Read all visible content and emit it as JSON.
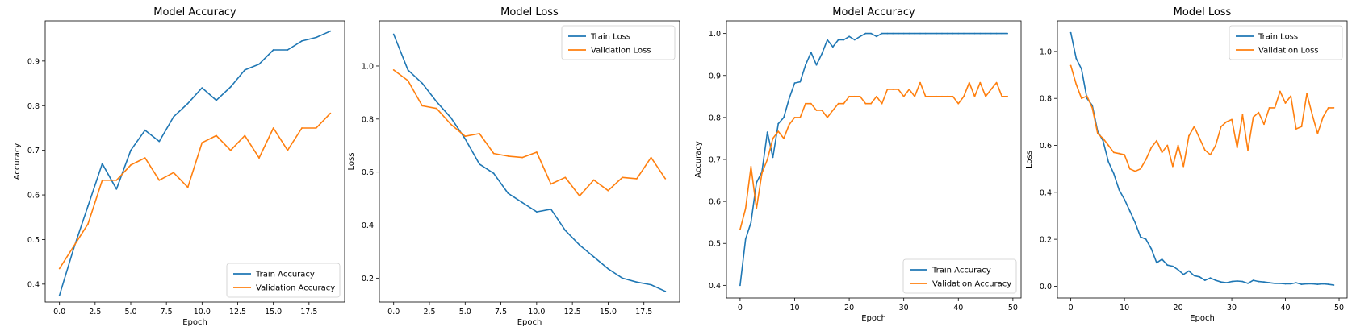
{
  "chart_data": [
    {
      "type": "line",
      "title": "Model Accuracy",
      "xlabel": "Epoch",
      "ylabel": "Accuracy",
      "xlim": [
        -1,
        20
      ],
      "ylim": [
        0.36,
        0.99
      ],
      "xticks": [
        0.0,
        2.5,
        5.0,
        7.5,
        10.0,
        12.5,
        15.0,
        17.5
      ],
      "xtick_labels": [
        "0.0",
        "2.5",
        "5.0",
        "7.5",
        "10.0",
        "12.5",
        "15.0",
        "17.5"
      ],
      "yticks": [
        0.4,
        0.5,
        0.6,
        0.7,
        0.8,
        0.9
      ],
      "ytick_labels": [
        "0.4",
        "0.5",
        "0.6",
        "0.7",
        "0.8",
        "0.9"
      ],
      "legend_position": "bottom-right",
      "x": [
        0,
        1,
        2,
        3,
        4,
        5,
        6,
        7,
        8,
        9,
        10,
        11,
        12,
        13,
        14,
        15,
        16,
        17,
        18,
        19
      ],
      "series": [
        {
          "name": "Train Accuracy",
          "color": "#1f77b4",
          "values": [
            0.375,
            0.48,
            0.575,
            0.67,
            0.613,
            0.7,
            0.745,
            0.72,
            0.775,
            0.805,
            0.84,
            0.812,
            0.842,
            0.88,
            0.893,
            0.925,
            0.925,
            0.945,
            0.953,
            0.967
          ]
        },
        {
          "name": "Validation Accuracy",
          "color": "#ff7f0e",
          "values": [
            0.435,
            0.485,
            0.535,
            0.633,
            0.633,
            0.667,
            0.683,
            0.633,
            0.65,
            0.617,
            0.717,
            0.733,
            0.7,
            0.733,
            0.683,
            0.75,
            0.7,
            0.75,
            0.75,
            0.783
          ]
        }
      ]
    },
    {
      "type": "line",
      "title": "Model Loss",
      "xlabel": "Epoch",
      "ylabel": "Loss",
      "xlim": [
        -1,
        20
      ],
      "ylim": [
        0.11,
        1.17
      ],
      "xticks": [
        0.0,
        2.5,
        5.0,
        7.5,
        10.0,
        12.5,
        15.0,
        17.5
      ],
      "xtick_labels": [
        "0.0",
        "2.5",
        "5.0",
        "7.5",
        "10.0",
        "12.5",
        "15.0",
        "17.5"
      ],
      "yticks": [
        0.2,
        0.4,
        0.6,
        0.8,
        1.0
      ],
      "ytick_labels": [
        "0.2",
        "0.4",
        "0.6",
        "0.8",
        "1.0"
      ],
      "legend_position": "top-right",
      "x": [
        0,
        1,
        2,
        3,
        4,
        5,
        6,
        7,
        8,
        9,
        10,
        11,
        12,
        13,
        14,
        15,
        16,
        17,
        18,
        19
      ],
      "series": [
        {
          "name": "Train Loss",
          "color": "#1f77b4",
          "values": [
            1.12,
            0.985,
            0.935,
            0.865,
            0.805,
            0.725,
            0.63,
            0.595,
            0.52,
            0.485,
            0.45,
            0.46,
            0.38,
            0.325,
            0.28,
            0.235,
            0.2,
            0.185,
            0.175,
            0.15
          ]
        },
        {
          "name": "Validation Loss",
          "color": "#ff7f0e",
          "values": [
            0.985,
            0.945,
            0.85,
            0.84,
            0.78,
            0.735,
            0.745,
            0.67,
            0.66,
            0.655,
            0.675,
            0.555,
            0.58,
            0.51,
            0.57,
            0.53,
            0.58,
            0.575,
            0.655,
            0.575
          ]
        }
      ]
    },
    {
      "type": "line",
      "title": "Model Accuracy",
      "xlabel": "Epoch",
      "ylabel": "Accuracy",
      "xlim": [
        -2.5,
        51.5
      ],
      "ylim": [
        0.37,
        1.03
      ],
      "xticks": [
        0,
        10,
        20,
        30,
        40,
        50
      ],
      "xtick_labels": [
        "0",
        "10",
        "20",
        "30",
        "40",
        "50"
      ],
      "yticks": [
        0.4,
        0.5,
        0.6,
        0.7,
        0.8,
        0.9,
        1.0
      ],
      "ytick_labels": [
        "0.4",
        "0.5",
        "0.6",
        "0.7",
        "0.8",
        "0.9",
        "1.0"
      ],
      "legend_position": "bottom-right",
      "x": [
        0,
        1,
        2,
        3,
        4,
        5,
        6,
        7,
        8,
        9,
        10,
        11,
        12,
        13,
        14,
        15,
        16,
        17,
        18,
        19,
        20,
        21,
        22,
        23,
        24,
        25,
        26,
        27,
        28,
        29,
        30,
        31,
        32,
        33,
        34,
        35,
        36,
        37,
        38,
        39,
        40,
        41,
        42,
        43,
        44,
        45,
        46,
        47,
        48,
        49
      ],
      "series": [
        {
          "name": "Train Accuracy",
          "color": "#1f77b4",
          "values": [
            0.4,
            0.51,
            0.55,
            0.645,
            0.67,
            0.765,
            0.705,
            0.785,
            0.8,
            0.845,
            0.882,
            0.885,
            0.925,
            0.955,
            0.925,
            0.952,
            0.985,
            0.968,
            0.985,
            0.985,
            0.993,
            0.985,
            0.993,
            1.0,
            1.0,
            0.993,
            1.0,
            1.0,
            1.0,
            1.0,
            1.0,
            1.0,
            1.0,
            1.0,
            1.0,
            1.0,
            1.0,
            1.0,
            1.0,
            1.0,
            1.0,
            1.0,
            1.0,
            1.0,
            1.0,
            1.0,
            1.0,
            1.0,
            1.0,
            1.0
          ]
        },
        {
          "name": "Validation Accuracy",
          "color": "#ff7f0e",
          "values": [
            0.533,
            0.583,
            0.683,
            0.583,
            0.667,
            0.7,
            0.75,
            0.767,
            0.75,
            0.783,
            0.8,
            0.8,
            0.833,
            0.833,
            0.817,
            0.817,
            0.8,
            0.817,
            0.833,
            0.833,
            0.85,
            0.85,
            0.85,
            0.833,
            0.833,
            0.85,
            0.833,
            0.867,
            0.867,
            0.867,
            0.85,
            0.867,
            0.85,
            0.883,
            0.85,
            0.85,
            0.85,
            0.85,
            0.85,
            0.85,
            0.833,
            0.85,
            0.883,
            0.85,
            0.883,
            0.85,
            0.867,
            0.883,
            0.85,
            0.85
          ]
        }
      ]
    },
    {
      "type": "line",
      "title": "Model Loss",
      "xlabel": "Epoch",
      "ylabel": "Loss",
      "xlim": [
        -2.5,
        51.5
      ],
      "ylim": [
        -0.05,
        1.13
      ],
      "xticks": [
        0,
        10,
        20,
        30,
        40,
        50
      ],
      "xtick_labels": [
        "0",
        "10",
        "20",
        "30",
        "40",
        "50"
      ],
      "yticks": [
        0.0,
        0.2,
        0.4,
        0.6,
        0.8,
        1.0
      ],
      "ytick_labels": [
        "0.0",
        "0.2",
        "0.4",
        "0.6",
        "0.8",
        "1.0"
      ],
      "legend_position": "top-right",
      "x": [
        0,
        1,
        2,
        3,
        4,
        5,
        6,
        7,
        8,
        9,
        10,
        11,
        12,
        13,
        14,
        15,
        16,
        17,
        18,
        19,
        20,
        21,
        22,
        23,
        24,
        25,
        26,
        27,
        28,
        29,
        30,
        31,
        32,
        33,
        34,
        35,
        36,
        37,
        38,
        39,
        40,
        41,
        42,
        43,
        44,
        45,
        46,
        47,
        48,
        49
      ],
      "series": [
        {
          "name": "Train Loss",
          "color": "#1f77b4",
          "values": [
            1.08,
            0.97,
            0.925,
            0.8,
            0.77,
            0.66,
            0.62,
            0.53,
            0.48,
            0.41,
            0.37,
            0.32,
            0.27,
            0.21,
            0.2,
            0.16,
            0.1,
            0.115,
            0.09,
            0.085,
            0.07,
            0.05,
            0.065,
            0.045,
            0.04,
            0.025,
            0.035,
            0.025,
            0.018,
            0.015,
            0.02,
            0.022,
            0.02,
            0.012,
            0.025,
            0.02,
            0.018,
            0.015,
            0.012,
            0.012,
            0.01,
            0.01,
            0.015,
            0.008,
            0.01,
            0.01,
            0.008,
            0.01,
            0.008,
            0.005
          ]
        },
        {
          "name": "Validation Loss",
          "color": "#ff7f0e",
          "values": [
            0.94,
            0.86,
            0.8,
            0.81,
            0.76,
            0.65,
            0.63,
            0.6,
            0.57,
            0.565,
            0.56,
            0.5,
            0.49,
            0.5,
            0.54,
            0.59,
            0.62,
            0.57,
            0.6,
            0.51,
            0.6,
            0.51,
            0.64,
            0.68,
            0.63,
            0.58,
            0.56,
            0.6,
            0.68,
            0.7,
            0.71,
            0.59,
            0.73,
            0.58,
            0.72,
            0.74,
            0.69,
            0.76,
            0.76,
            0.83,
            0.78,
            0.81,
            0.67,
            0.68,
            0.82,
            0.73,
            0.65,
            0.72,
            0.76,
            0.76
          ]
        }
      ]
    }
  ]
}
